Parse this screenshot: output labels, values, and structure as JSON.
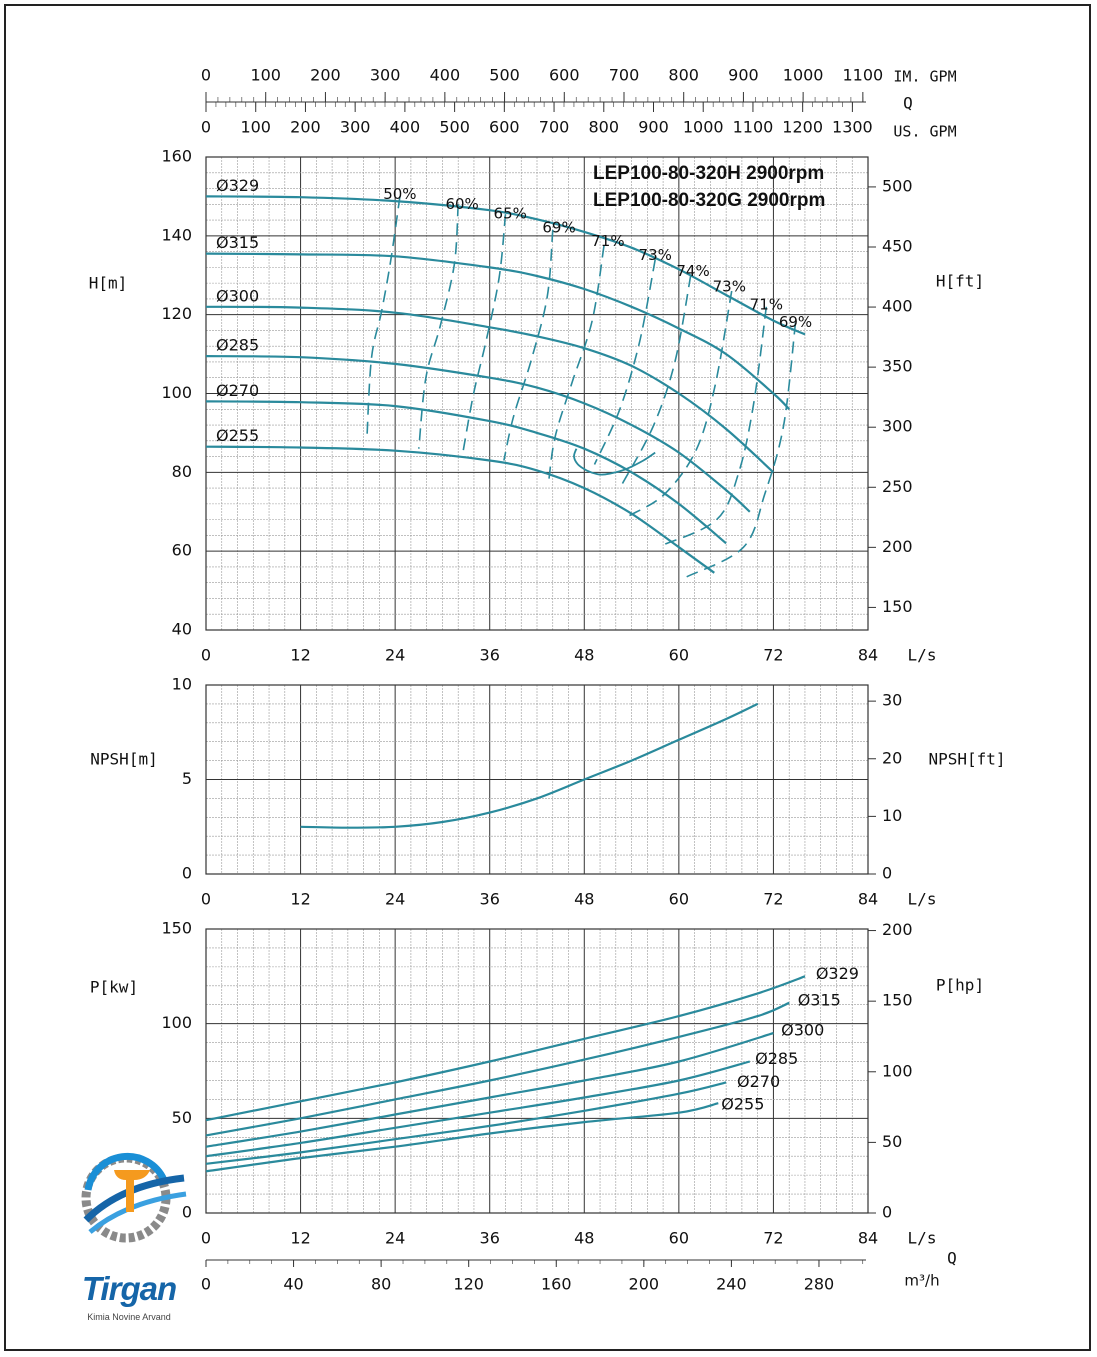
{
  "colors": {
    "curve": "#2a8a9c",
    "grid_major": "#333333",
    "grid_minor": "#9a9a9a",
    "frame": "#222222"
  },
  "logo": {
    "name": "Tirgan",
    "subtitle": "Kimia Novine Arvand",
    "icon": "pump-gear-logo"
  },
  "top_axes": {
    "imp_label": "IM. GPM",
    "us_label": "US. GPM",
    "q_label": "Q",
    "imp_ticks": [
      "0",
      "100",
      "200",
      "300",
      "400",
      "500",
      "600",
      "700",
      "800",
      "900",
      "1000",
      "1100"
    ],
    "us_ticks": [
      "0",
      "100",
      "200",
      "300",
      "400",
      "500",
      "600",
      "700",
      "800",
      "900",
      "1000",
      "1100",
      "1200",
      "1300"
    ]
  },
  "chart_data": [
    {
      "type": "line",
      "title": [
        "LEP100-80-320H 2900rpm",
        "LEP100-80-320G 2900rpm"
      ],
      "xlabel": "L/s",
      "ylabel": "H[m]",
      "ylabel_right": "H[ft]",
      "xlim": [
        0,
        84
      ],
      "ylim": [
        40,
        160
      ],
      "ylim_right_ft": [
        131.2,
        524.9
      ],
      "x_ticks": [
        "0",
        "12",
        "24",
        "36",
        "48",
        "60",
        "72",
        "84"
      ],
      "y_ticks": [
        "40",
        "60",
        "80",
        "100",
        "120",
        "140",
        "160"
      ],
      "y_ticks_right": [
        "150",
        "200",
        "250",
        "300",
        "350",
        "400",
        "450",
        "500"
      ],
      "grid": true,
      "series": [
        {
          "name": "Ø329",
          "x": [
            0,
            12,
            24,
            36,
            42,
            48,
            54,
            60,
            66,
            72,
            76
          ],
          "y": [
            150,
            149.8,
            148.8,
            146.5,
            144.2,
            141,
            137,
            131.5,
            125,
            118.5,
            115
          ]
        },
        {
          "name": "Ø315",
          "x": [
            0,
            12,
            24,
            36,
            42,
            48,
            54,
            60,
            66,
            72,
            74
          ],
          "y": [
            135.5,
            135.3,
            134.8,
            132,
            129.8,
            126.5,
            122,
            116.5,
            110,
            100,
            96
          ]
        },
        {
          "name": "Ø300",
          "x": [
            0,
            12,
            24,
            36,
            42,
            48,
            54,
            60,
            66,
            72
          ],
          "y": [
            122,
            121.8,
            120.5,
            116.8,
            114.5,
            111.5,
            107,
            100,
            91,
            80
          ]
        },
        {
          "name": "Ø285",
          "x": [
            0,
            12,
            24,
            36,
            42,
            48,
            54,
            60,
            66,
            69
          ],
          "y": [
            109.5,
            109.2,
            107.5,
            104,
            101.5,
            97.5,
            92,
            85,
            75.5,
            70
          ]
        },
        {
          "name": "Ø270",
          "x": [
            0,
            12,
            24,
            36,
            42,
            48,
            54,
            60,
            66
          ],
          "y": [
            98,
            97.8,
            96.8,
            93,
            90,
            86,
            80,
            72,
            62
          ]
        },
        {
          "name": "Ø255",
          "x": [
            0,
            12,
            24,
            36,
            42,
            48,
            54,
            60,
            64.5
          ],
          "y": [
            86.5,
            86.3,
            85.5,
            83,
            80.5,
            76,
            69.5,
            61,
            54.5
          ]
        }
      ],
      "efficiency_labels": [
        {
          "label": "50%",
          "x": 24.6,
          "y": 150.5
        },
        {
          "label": "60%",
          "x": 32.5,
          "y": 148
        },
        {
          "label": "65%",
          "x": 38.6,
          "y": 145.5
        },
        {
          "label": "69%",
          "x": 44.8,
          "y": 142
        },
        {
          "label": "71%",
          "x": 51,
          "y": 138.6
        },
        {
          "label": "73%",
          "x": 57,
          "y": 135
        },
        {
          "label": "74%",
          "x": 61.8,
          "y": 131
        },
        {
          "label": "73%",
          "x": 66.4,
          "y": 127
        },
        {
          "label": "71%",
          "x": 71.1,
          "y": 122.5
        },
        {
          "label": "69%",
          "x": 74.8,
          "y": 118
        }
      ],
      "efficiency_lines": [
        {
          "label": "50%",
          "x": [
            24.6,
            23.5,
            22.3,
            21.0,
            20.4
          ],
          "y": [
            150,
            134.5,
            121,
            109,
            88
          ]
        },
        {
          "label": "60%",
          "x": [
            32,
            31.5,
            29.7,
            27.9,
            27.0
          ],
          "y": [
            148,
            132.7,
            117,
            104,
            86
          ]
        },
        {
          "label": "65%",
          "x": [
            38,
            37.2,
            35.5,
            33.9,
            32.6
          ],
          "y": [
            145.5,
            129.5,
            113,
            99.5,
            85
          ]
        },
        {
          "label": "69%",
          "x": [
            44,
            43.3,
            41.2,
            39.0,
            37.8
          ],
          "y": [
            141.5,
            124.5,
            108,
            94,
            83
          ]
        },
        {
          "label": "71%",
          "x": [
            50.5,
            49,
            46.4,
            44.3,
            43.5
          ],
          "y": [
            137.5,
            118.5,
            102.5,
            89,
            78
          ]
        },
        {
          "label": "73%",
          "x": [
            57,
            55,
            52.5,
            49.3
          ],
          "y": [
            134,
            113,
            96,
            82
          ]
        },
        {
          "label": "74%",
          "x": [
            61.5,
            59.5,
            56.7,
            52.8
          ],
          "y": [
            130,
            108,
            91.5,
            77
          ]
        },
        {
          "label": "73%",
          "x": [
            66.7,
            64.6,
            62.2,
            58.2,
            53.7
          ],
          "y": [
            126,
            102,
            85.7,
            74.5,
            69
          ]
        },
        {
          "label": "71%",
          "x": [
            71.1,
            69.5,
            67.6,
            64.8,
            57.9
          ],
          "y": [
            122,
            97.5,
            80,
            68,
            61.5
          ]
        },
        {
          "label": "69%",
          "x": [
            74.8,
            73.3,
            70.9,
            68.2,
            61
          ],
          "y": [
            118,
            92,
            74.5,
            61,
            53.5
          ]
        }
      ],
      "peak_efficiency_loop": {
        "x": [
          47,
          46.7,
          47.2,
          48.3,
          49.7,
          50.7,
          52,
          53.5,
          55.5,
          57
        ],
        "y": [
          86,
          84,
          82,
          80.5,
          79.5,
          79.5,
          80,
          81,
          83,
          85
        ]
      }
    },
    {
      "type": "line",
      "xlabel": "L/s",
      "ylabel": "NPSH[m]",
      "ylabel_right": "NPSH[ft]",
      "xlim": [
        0,
        84
      ],
      "ylim": [
        0,
        10
      ],
      "ylim_right_ft": [
        0,
        32.8
      ],
      "x_ticks": [
        "0",
        "12",
        "24",
        "36",
        "48",
        "60",
        "72",
        "84"
      ],
      "y_ticks": [
        "0",
        "5",
        "10"
      ],
      "y_ticks_right": [
        "0",
        "10",
        "20",
        "30"
      ],
      "grid": true,
      "series": [
        {
          "x": [
            12,
            18,
            24,
            30,
            36,
            42,
            48,
            54,
            60,
            66,
            70
          ],
          "y": [
            2.5,
            2.45,
            2.5,
            2.75,
            3.25,
            4.0,
            5.0,
            6.0,
            7.1,
            8.2,
            9.0
          ]
        }
      ]
    },
    {
      "type": "line",
      "xlabel": "L/s",
      "ylabel": "P[kw]",
      "ylabel_right": "P[hp]",
      "xlim": [
        0,
        84
      ],
      "ylim": [
        0,
        150
      ],
      "ylim_right_hp": [
        0,
        201.1
      ],
      "x_ticks": [
        "0",
        "12",
        "24",
        "36",
        "48",
        "60",
        "72",
        "84"
      ],
      "y_ticks": [
        "0",
        "50",
        "100",
        "150"
      ],
      "y_ticks_right": [
        "0",
        "50",
        "100",
        "150",
        "200"
      ],
      "x2_label": "m³/h",
      "x2_ticks": [
        "0",
        "40",
        "80",
        "120",
        "160",
        "200",
        "240",
        "280"
      ],
      "q_label": "Q",
      "grid": true,
      "series": [
        {
          "name": "Ø329",
          "x": [
            0,
            12,
            24,
            36,
            48,
            60,
            70,
            76
          ],
          "y": [
            49,
            59,
            69,
            80,
            92,
            104,
            116,
            125
          ]
        },
        {
          "name": "Ø315",
          "x": [
            0,
            12,
            24,
            36,
            48,
            60,
            70,
            74
          ],
          "y": [
            41,
            50,
            60,
            70,
            81,
            93,
            104,
            111
          ]
        },
        {
          "name": "Ø300",
          "x": [
            0,
            12,
            24,
            36,
            48,
            60,
            72
          ],
          "y": [
            35,
            43,
            52,
            61,
            70,
            80,
            95
          ]
        },
        {
          "name": "Ø285",
          "x": [
            0,
            12,
            24,
            36,
            48,
            60,
            69
          ],
          "y": [
            30,
            37,
            45,
            53,
            61,
            70,
            80
          ]
        },
        {
          "name": "Ø270",
          "x": [
            0,
            12,
            24,
            36,
            48,
            60,
            66
          ],
          "y": [
            26,
            32,
            39,
            46,
            54,
            63,
            69
          ]
        },
        {
          "name": "Ø255",
          "x": [
            0,
            12,
            24,
            36,
            48,
            60,
            65
          ],
          "y": [
            22,
            29,
            35,
            42,
            48,
            53,
            58
          ]
        }
      ],
      "series_label_positions": [
        {
          "name": "Ø329",
          "x": 77,
          "y": 126
        },
        {
          "name": "Ø315",
          "x": 74.7,
          "y": 112
        },
        {
          "name": "Ø300",
          "x": 72.6,
          "y": 96
        },
        {
          "name": "Ø285",
          "x": 69.3,
          "y": 81
        },
        {
          "name": "Ø270",
          "x": 67,
          "y": 69
        },
        {
          "name": "Ø255",
          "x": 65,
          "y": 57
        }
      ]
    }
  ]
}
